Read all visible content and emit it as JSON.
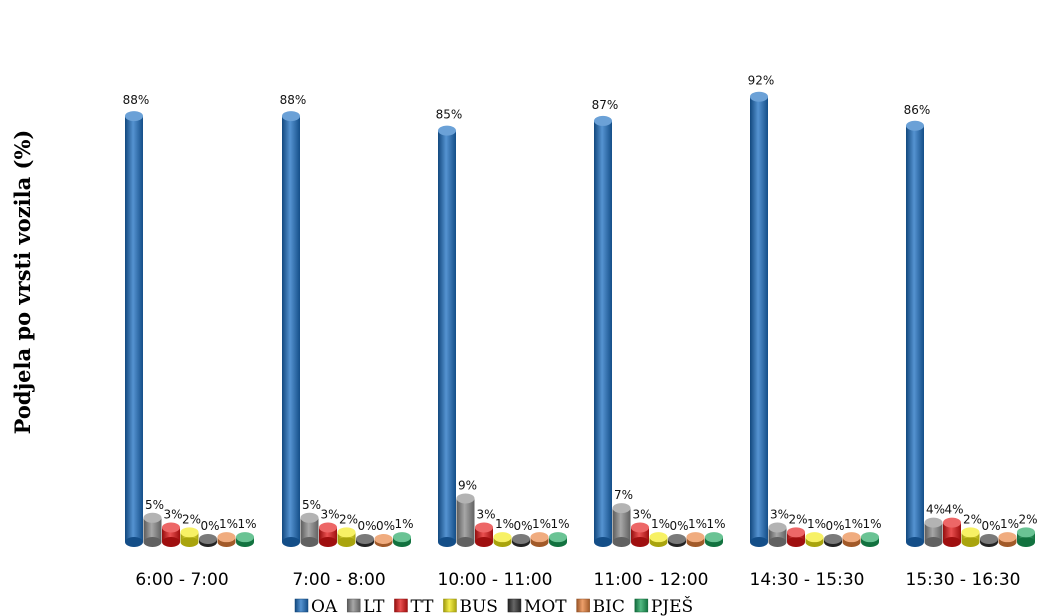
{
  "chart_data": {
    "type": "bar",
    "ylabel": "Podjela po vrsti vozila (%)",
    "categories": [
      "6:00 - 7:00",
      "7:00 - 8:00",
      "10:00 - 11:00",
      "11:00 - 12:00",
      "14:30 - 15:30",
      "15:30 - 16:30"
    ],
    "series": [
      {
        "name": "OA",
        "color": "#1c6fc2",
        "values": [
          88,
          88,
          85,
          87,
          92,
          86
        ],
        "labels": [
          "88%",
          "88%",
          "85%",
          "87%",
          "92%",
          "86%"
        ]
      },
      {
        "name": "LT",
        "color": "#8a8a8a",
        "values": [
          5,
          5,
          9,
          7,
          3,
          4
        ],
        "labels": [
          "5%",
          "5%",
          "9%",
          "7%",
          "3%",
          "4%"
        ]
      },
      {
        "name": "TT",
        "color": "#e31515",
        "values": [
          3,
          3,
          3,
          3,
          2,
          4
        ],
        "labels": [
          "3%",
          "3%",
          "3%",
          "3%",
          "2%",
          "4%"
        ]
      },
      {
        "name": "BUS",
        "color": "#f2ea12",
        "values": [
          2,
          2,
          1,
          1,
          1,
          2
        ],
        "labels": [
          "2%",
          "2%",
          "1%",
          "1%",
          "1%",
          "2%"
        ]
      },
      {
        "name": "MOT",
        "color": "#333333",
        "values": [
          0,
          0,
          0,
          0,
          0,
          0
        ],
        "labels": [
          "0%",
          "0%",
          "0%",
          "0%",
          "0%",
          "0%"
        ]
      },
      {
        "name": "BIC",
        "color": "#e8803a",
        "values": [
          1,
          0,
          1,
          1,
          1,
          1
        ],
        "labels": [
          "1%",
          "0%",
          "1%",
          "1%",
          "1%",
          "1%"
        ]
      },
      {
        "name": "PJEŠ",
        "color": "#1aa35a",
        "values": [
          1,
          1,
          1,
          1,
          1,
          2
        ],
        "labels": [
          "1%",
          "1%",
          "1%",
          "1%",
          "1%",
          "2%"
        ]
      }
    ],
    "ylim": [
      0,
      100
    ],
    "grid": false,
    "legend_position": "bottom"
  }
}
